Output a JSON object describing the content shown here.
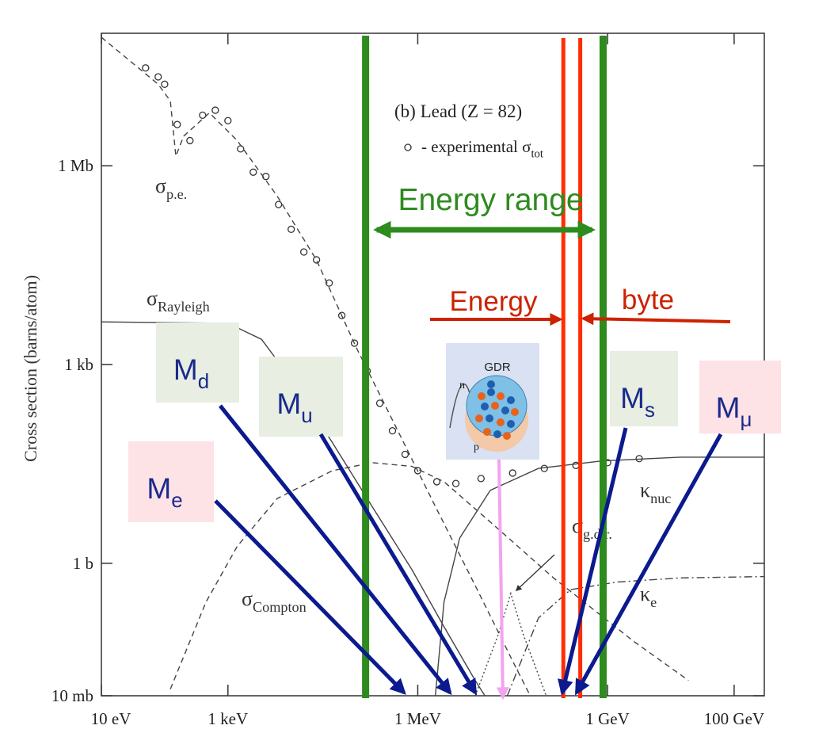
{
  "chart_data": {
    "type": "line",
    "title": "(b) Lead (Z = 82)",
    "ylabel": "Cross section  (barns/atom)",
    "xscale": "log",
    "yscale": "log",
    "xlim": [
      10,
      300000000000
    ],
    "ylim": [
      0.01,
      100000000
    ],
    "xticks": [
      {
        "value": 10,
        "label": "10 eV"
      },
      {
        "value": 1000,
        "label": "1 keV"
      },
      {
        "value": 1000000,
        "label": "1 MeV"
      },
      {
        "value": 1000000000,
        "label": "1 GeV"
      },
      {
        "value": 100000000000,
        "label": "100 GeV"
      }
    ],
    "yticks": [
      {
        "value": 0.01,
        "label": "10 mb"
      },
      {
        "value": 1,
        "label": "1 b"
      },
      {
        "value": 1000,
        "label": "1 kb"
      },
      {
        "value": 1000000,
        "label": "1 Mb"
      }
    ],
    "legend": {
      "text": "- experimental σ",
      "sub": "tot"
    },
    "series": [
      {
        "style": "markers",
        "color": "#333333",
        "x": [
          50,
          79,
          100,
          158,
          251,
          398,
          631,
          1000,
          1585,
          2512,
          3981,
          6310,
          10000,
          15850,
          25120,
          39810,
          63100,
          100000,
          158500,
          251200,
          398100,
          631000,
          1000000,
          2000000,
          4000000,
          10000000,
          31600000,
          100000000,
          316000000,
          1000000000,
          3160000000
        ],
        "values": [
          30000000,
          22000000,
          17000000,
          4200000,
          2400000,
          5800000,
          6900000,
          4800000,
          1800000,
          800000,
          690000,
          260000,
          110000,
          50000,
          38000,
          17000,
          5500,
          2100,
          800,
          260,
          100,
          44,
          25,
          17,
          16,
          19,
          23,
          27,
          30,
          33,
          38
        ]
      },
      {
        "style": "dashed",
        "color": "#444444",
        "label": {
          "text": "σ",
          "sub": "p.e."
        },
        "x": [
          10,
          79,
          123,
          150,
          200,
          510,
          1400,
          6000,
          25000,
          107000,
          450000,
          1900000,
          8100000,
          34000000,
          60000000
        ],
        "values": [
          87000000,
          17000000,
          9500000,
          1400000,
          2800000,
          6300000,
          2400000,
          350000,
          38000,
          1800,
          115,
          7.2,
          0.46,
          0.029,
          0.01
        ]
      },
      {
        "style": "solid",
        "color": "#444444",
        "label": {
          "text": "σ",
          "sub": "Rayleigh"
        },
        "x": [
          10,
          1000,
          3400,
          10000,
          45000,
          190000,
          810000,
          2600000,
          8100000,
          11500000
        ],
        "values": [
          4400,
          4200,
          2400,
          600,
          66,
          7.2,
          0.8,
          0.11,
          0.017,
          0.01
        ]
      },
      {
        "style": "dashed",
        "color": "#444444",
        "label": {
          "text": "σ",
          "sub": "Compton"
        },
        "x": [
          123,
          450,
          1400,
          6000,
          45000,
          190000,
          810000,
          2600000,
          14000000,
          140000000,
          2600000000,
          19000000000
        ],
        "values": [
          0.0126,
          0.26,
          1.8,
          9.5,
          25,
          33,
          29,
          17,
          4.2,
          0.6,
          0.066,
          0.017
        ]
      },
      {
        "style": "solid",
        "color": "#444444",
        "label": {
          "text": "κ",
          "sub": "nuc"
        },
        "x": [
          1900000,
          2600000,
          4600000,
          14000000,
          81000000,
          810000000,
          14000000000,
          300000000000
        ],
        "values": [
          0.01,
          0.26,
          2.4,
          12.6,
          27,
          35,
          40,
          40
        ]
      },
      {
        "style": "dashdot",
        "color": "#444444",
        "label": {
          "text": "κ",
          "sub": "e"
        },
        "x": [
          26000000,
          81000000,
          260000000,
          1400000000,
          14000000000,
          300000000000
        ],
        "values": [
          0.01,
          0.15,
          0.4,
          0.52,
          0.6,
          0.63
        ]
      },
      {
        "style": "dotted",
        "color": "#444444",
        "label": {
          "text": "σ",
          "sub": "g.d.r."
        },
        "x": [
          8100000,
          19000000,
          29500000,
          46000000,
          107000000
        ],
        "values": [
          0.01,
          0.087,
          0.35,
          0.087,
          0.01
        ]
      }
    ],
    "vlines": [
      {
        "x": 150000,
        "color": "#2e8b1e"
      },
      {
        "x": 850000000,
        "color": "#2e8b1e"
      },
      {
        "x": 200000000,
        "color": "#ff2d00"
      },
      {
        "x": 370000000,
        "color": "#ff2d00"
      }
    ]
  },
  "overlay": {
    "range_label": "Energy range",
    "left_label": "Energy",
    "right_label": "byte",
    "boxes": [
      {
        "text": "M",
        "sub": "d",
        "color": "#e8eee1"
      },
      {
        "text": "M",
        "sub": "u",
        "color": "#e8eee1"
      },
      {
        "text": "M",
        "sub": "e",
        "color": "#fde2e6"
      },
      {
        "text": "M",
        "sub": "s",
        "color": "#e8eee1"
      },
      {
        "text": "M",
        "sub": "μ",
        "color": "#fde2e6"
      }
    ],
    "gdr": {
      "title": "GDR",
      "n": "n",
      "p": "p"
    }
  }
}
